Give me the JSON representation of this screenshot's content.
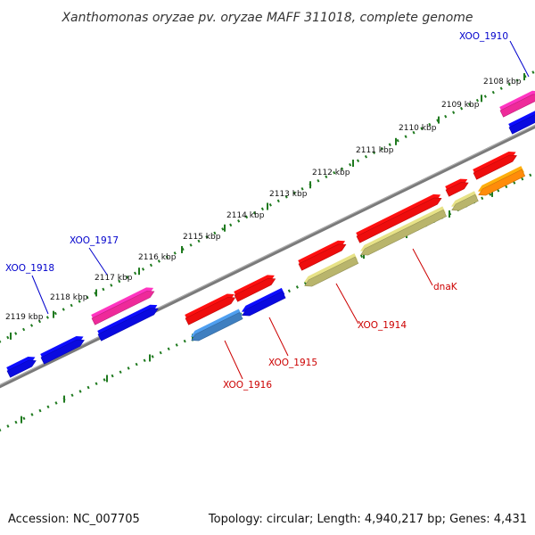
{
  "title": "Xanthomonas oryzae pv. oryzae MAFF 311018, complete genome",
  "footer": {
    "accession": "Accession: NC_007705",
    "summary": "Topology: circular; Length: 4,940,217 bp; Genes: 4,431"
  },
  "colors": {
    "forward_label": "#0000cc",
    "reverse_label": "#cc0000",
    "dotted_track": "#1f7a1f",
    "backbone": "#7a7a7a",
    "blue": "#0a0ae0",
    "pink": "#ee2a9a",
    "red": "#ee0d0d",
    "khaki": "#b9b56c",
    "steelblue": "#3f7fc0",
    "orange": "#ff8c0a"
  },
  "scale_ticks": [
    {
      "label": "2108 kbp"
    },
    {
      "label": "2109 kbp"
    },
    {
      "label": "2110 kbp"
    },
    {
      "label": "2111 kbp"
    },
    {
      "label": "2112 kbp"
    },
    {
      "label": "2113 kbp"
    },
    {
      "label": "2114 kbp"
    },
    {
      "label": "2115 kbp"
    },
    {
      "label": "2116 kbp"
    },
    {
      "label": "2117 kbp"
    },
    {
      "label": "2118 kbp"
    },
    {
      "label": "2119 kbp"
    }
  ],
  "gene_labels": {
    "xoo_1910": "XOO_1910",
    "xoo_1917": "XOO_1917",
    "xoo_1918": "XOO_1918",
    "dnak": "dnaK",
    "xoo_1914": "XOO_1914",
    "xoo_1915": "XOO_1915",
    "xoo_1916": "XOO_1916"
  },
  "genes": [
    {
      "id": "xoo_1910",
      "strand": "forward",
      "color": "pink"
    },
    {
      "id": "xoo_1910b",
      "strand": "forward",
      "color": "blue"
    },
    {
      "id": "gene_a",
      "strand": "forward",
      "color": "red"
    },
    {
      "id": "gene_b",
      "strand": "forward",
      "color": "red"
    },
    {
      "id": "gene_c",
      "strand": "forward",
      "color": "red"
    },
    {
      "id": "gene_d",
      "strand": "forward",
      "color": "red"
    },
    {
      "id": "gene_e",
      "strand": "forward",
      "color": "red"
    },
    {
      "id": "gene_f",
      "strand": "forward",
      "color": "red"
    },
    {
      "id": "xoo_1917",
      "strand": "forward",
      "color": "pink"
    },
    {
      "id": "xoo_1917b",
      "strand": "forward",
      "color": "blue"
    },
    {
      "id": "xoo_1918",
      "strand": "forward",
      "color": "blue"
    },
    {
      "id": "gene_g",
      "strand": "forward",
      "color": "blue"
    },
    {
      "id": "gene_h",
      "strand": "reverse",
      "color": "orange"
    },
    {
      "id": "gene_i",
      "strand": "reverse",
      "color": "khaki"
    },
    {
      "id": "dnak",
      "strand": "reverse",
      "color": "khaki"
    },
    {
      "id": "xoo_1914",
      "strand": "reverse",
      "color": "khaki"
    },
    {
      "id": "xoo_1915",
      "strand": "reverse",
      "color": "blue"
    },
    {
      "id": "xoo_1916",
      "strand": "reverse",
      "color": "steelblue"
    }
  ]
}
